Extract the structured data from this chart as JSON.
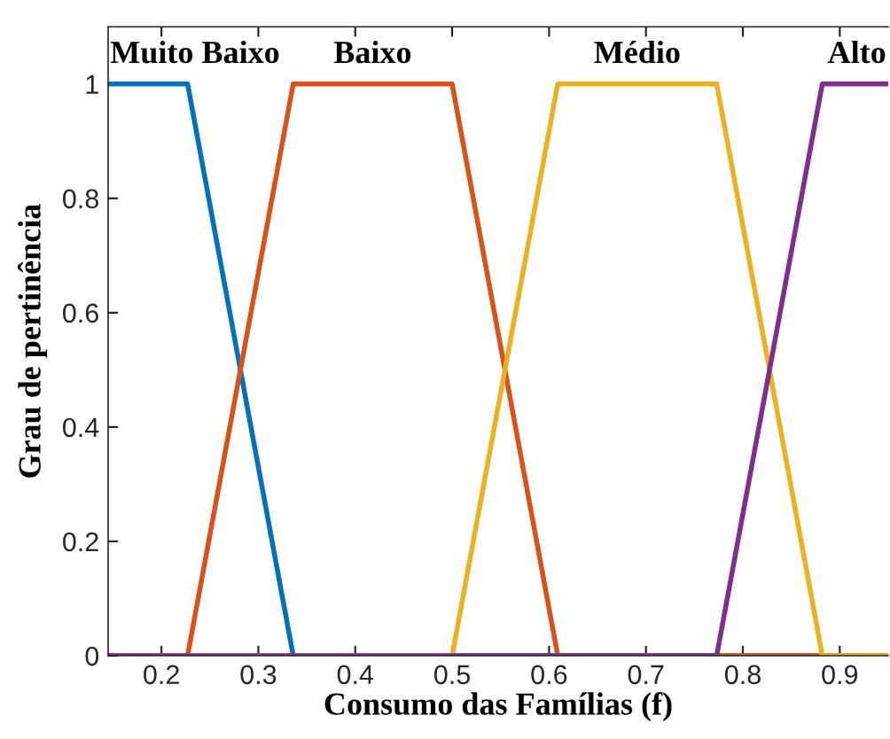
{
  "chart_data": {
    "type": "line",
    "xlabel": "Consumo das Famílias (f)",
    "ylabel": "Grau de pertinência",
    "xlim": [
      0.145,
      0.95
    ],
    "ylim": [
      0,
      1.1
    ],
    "xticks": [
      0.2,
      0.3,
      0.4,
      0.5,
      0.6,
      0.7,
      0.8,
      0.9
    ],
    "yticks": [
      0,
      0.2,
      0.4,
      0.6,
      0.8,
      1
    ],
    "grid": false,
    "legend": false,
    "series": [
      {
        "name": "Muito Baixo",
        "color": "#0072bd",
        "x": [
          0.145,
          0.227,
          0.336,
          0.95
        ],
        "values": [
          1,
          1,
          0,
          0
        ]
      },
      {
        "name": "Baixo",
        "color": "#d95319",
        "x": [
          0.145,
          0.227,
          0.336,
          0.5,
          0.609,
          0.95
        ],
        "values": [
          0,
          0,
          1,
          1,
          0,
          0
        ]
      },
      {
        "name": "Médio",
        "color": "#edb120",
        "x": [
          0.145,
          0.5,
          0.609,
          0.773,
          0.882,
          0.95
        ],
        "values": [
          0,
          0,
          1,
          1,
          0,
          0
        ]
      },
      {
        "name": "Alto",
        "color": "#7e2f8e",
        "x": [
          0.145,
          0.773,
          0.882,
          0.95
        ],
        "values": [
          0,
          0,
          1,
          1
        ]
      }
    ]
  }
}
